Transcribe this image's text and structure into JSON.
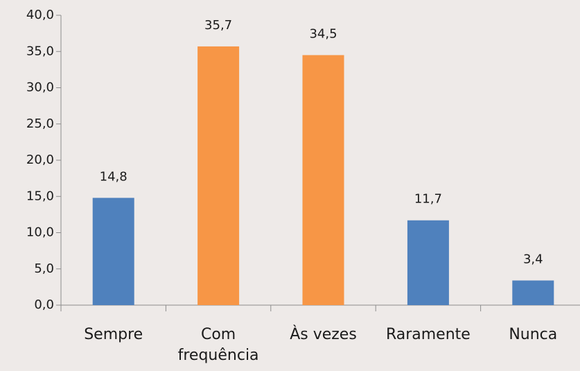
{
  "chart_data": {
    "type": "bar",
    "categories": [
      "Sempre",
      "Com frequência",
      "Às vezes",
      "Raramente",
      "Nunca"
    ],
    "values": [
      14.8,
      35.7,
      34.5,
      11.7,
      3.4
    ],
    "value_labels": [
      "14,8",
      "35,7",
      "34,5",
      "11,7",
      "3,4"
    ],
    "colors": [
      "#4f81bd",
      "#f79646",
      "#f79646",
      "#4f81bd",
      "#4f81bd"
    ],
    "ylim": [
      0,
      40
    ],
    "yticks": [
      {
        "value": 0,
        "label": "0,0"
      },
      {
        "value": 5,
        "label": "5,0"
      },
      {
        "value": 10,
        "label": "10,0"
      },
      {
        "value": 15,
        "label": "15,0"
      },
      {
        "value": 20,
        "label": "20,0"
      },
      {
        "value": 25,
        "label": "25,0"
      },
      {
        "value": 30,
        "label": "30,0"
      },
      {
        "value": 35,
        "label": "35,0"
      },
      {
        "value": 40,
        "label": "40,0"
      }
    ],
    "grid": false
  }
}
